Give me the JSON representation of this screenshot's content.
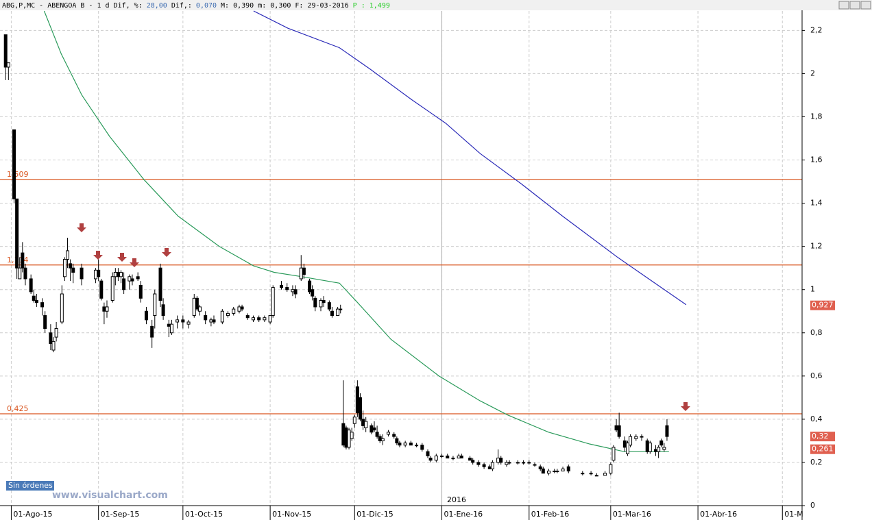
{
  "header": [
    {
      "text": "ABG,P,MC - ABENGOA B -  1 d Dif, %:",
      "color": "#000000"
    },
    {
      "text": "28,00",
      "color": "#3a6ab0"
    },
    {
      "text": "Dif,:",
      "color": "#000000"
    },
    {
      "text": "0,070",
      "color": "#3a6ab0"
    },
    {
      "text": "M: 0,390 m: 0,300 F: 29-03-2016",
      "color": "#000000"
    },
    {
      "text": "P : 1,499",
      "color": "#22cc22"
    }
  ],
  "orders_button": "Sin órdenes",
  "watermark": "www.visualchart.com",
  "year_label": "2016",
  "chart_data": {
    "type": "candlestick",
    "x": [
      -2,
      -1,
      1,
      2,
      3,
      4,
      5,
      7,
      8,
      9,
      11,
      12,
      14,
      15,
      16,
      18,
      19,
      20,
      21,
      22,
      25,
      30,
      31,
      32,
      33,
      34,
      36,
      37,
      38,
      39,
      40,
      42,
      43,
      45,
      46,
      48,
      50,
      51,
      53,
      54,
      56,
      57,
      59,
      61,
      63,
      65,
      66,
      67,
      69,
      71,
      72,
      75,
      77,
      79,
      81,
      82,
      84,
      86,
      88,
      90,
      92,
      93,
      96,
      98,
      100,
      101,
      103,
      104,
      106,
      107,
      108,
      110,
      111,
      113,
      114,
      116,
      117,
      118,
      119,
      120,
      121,
      122,
      123,
      124,
      125,
      126,
      128,
      129,
      130,
      131,
      132,
      134,
      136,
      137,
      138,
      140,
      142,
      144,
      146,
      148,
      149,
      151,
      153,
      155,
      157,
      159,
      160,
      163,
      164,
      166,
      168,
      170,
      171,
      173,
      174,
      176,
      177,
      180,
      182,
      184,
      186,
      188,
      189,
      191,
      193,
      194,
      196,
      198,
      203,
      206,
      208,
      211,
      213,
      214,
      215,
      216,
      218,
      219,
      220,
      222,
      224,
      226,
      227,
      229,
      230,
      231,
      232,
      233
    ],
    "open": [
      2.18,
      2.03,
      1.74,
      1.42,
      1.05,
      1.17,
      1.1,
      1.05,
      0.97,
      0.95,
      0.94,
      0.88,
      0.8,
      0.72,
      0.78,
      0.85,
      1.06,
      1.14,
      1.12,
      1.1,
      1.1,
      1.05,
      1.09,
      1.04,
      0.92,
      0.9,
      0.95,
      1.06,
      1.08,
      1.06,
      1.05,
      1.04,
      1.05,
      1.06,
      1.02,
      0.9,
      0.83,
      0.88,
      1.1,
      0.93,
      0.84,
      0.8,
      0.85,
      0.86,
      0.84,
      0.88,
      0.96,
      0.9,
      0.88,
      0.85,
      0.86,
      0.85,
      0.88,
      0.89,
      0.9,
      0.92,
      0.88,
      0.86,
      0.87,
      0.86,
      0.85,
      0.88,
      1.02,
      1.01,
      0.99,
      1.0,
      1.05,
      1.1,
      1.04,
      1.0,
      0.96,
      0.92,
      0.95,
      0.94,
      0.9,
      0.88,
      0.91,
      0.38,
      0.36,
      0.27,
      0.31,
      0.38,
      0.55,
      0.5,
      0.4,
      0.36,
      0.37,
      0.36,
      0.34,
      0.32,
      0.3,
      0.33,
      0.33,
      0.31,
      0.29,
      0.28,
      0.29,
      0.28,
      0.28,
      0.25,
      0.22,
      0.21,
      0.23,
      0.23,
      0.22,
      0.22,
      0.23,
      0.22,
      0.21,
      0.2,
      0.19,
      0.18,
      0.17,
      0.2,
      0.22,
      0.19,
      0.2,
      0.2,
      0.2,
      0.2,
      0.19,
      0.18,
      0.17,
      0.15,
      0.16,
      0.16,
      0.16,
      0.18,
      0.15,
      0.15,
      0.14,
      0.14,
      0.15,
      0.21,
      0.37,
      0.37,
      0.3,
      0.24,
      0.28,
      0.31,
      0.32,
      0.3,
      0.25,
      0.26,
      0.25,
      0.3,
      0.26,
      0.37
    ],
    "high": [
      2.18,
      2.05,
      1.74,
      1.42,
      1.15,
      1.22,
      1.12,
      1.07,
      1.0,
      0.98,
      0.96,
      0.9,
      0.84,
      0.78,
      0.85,
      1.02,
      1.15,
      1.24,
      1.14,
      1.12,
      1.12,
      1.1,
      1.14,
      1.05,
      0.94,
      0.95,
      1.08,
      1.1,
      1.1,
      1.09,
      1.08,
      1.07,
      1.07,
      1.08,
      1.04,
      0.92,
      0.86,
      1.0,
      1.12,
      0.96,
      0.86,
      0.86,
      0.88,
      0.88,
      0.86,
      0.98,
      0.97,
      0.93,
      0.9,
      0.87,
      0.88,
      0.91,
      0.9,
      0.92,
      0.93,
      0.93,
      0.89,
      0.88,
      0.88,
      0.88,
      0.88,
      1.02,
      1.04,
      1.03,
      1.02,
      1.02,
      1.16,
      1.12,
      1.05,
      1.02,
      0.97,
      0.96,
      0.97,
      0.95,
      0.92,
      0.92,
      0.93,
      0.58,
      0.37,
      0.36,
      0.36,
      0.42,
      0.58,
      0.52,
      0.44,
      0.41,
      0.38,
      0.39,
      0.37,
      0.33,
      0.33,
      0.35,
      0.34,
      0.32,
      0.3,
      0.3,
      0.3,
      0.29,
      0.29,
      0.26,
      0.23,
      0.24,
      0.24,
      0.24,
      0.23,
      0.24,
      0.24,
      0.23,
      0.22,
      0.21,
      0.2,
      0.19,
      0.21,
      0.26,
      0.23,
      0.21,
      0.21,
      0.21,
      0.21,
      0.21,
      0.2,
      0.19,
      0.18,
      0.17,
      0.17,
      0.17,
      0.18,
      0.19,
      0.16,
      0.16,
      0.15,
      0.16,
      0.2,
      0.28,
      0.4,
      0.43,
      0.32,
      0.3,
      0.33,
      0.33,
      0.33,
      0.31,
      0.3,
      0.28,
      0.28,
      0.31,
      0.29,
      0.4
    ],
    "low": [
      1.97,
      1.97,
      1.4,
      1.05,
      1.05,
      1.08,
      1.02,
      0.98,
      0.94,
      0.92,
      0.88,
      0.8,
      0.72,
      0.71,
      0.76,
      0.84,
      1.04,
      1.1,
      1.04,
      1.03,
      1.02,
      1.03,
      1.04,
      0.95,
      0.84,
      0.87,
      0.94,
      1.02,
      1.04,
      1.03,
      0.98,
      1.0,
      1.02,
      1.04,
      0.94,
      0.84,
      0.73,
      0.82,
      0.92,
      0.86,
      0.78,
      0.79,
      0.82,
      0.82,
      0.82,
      0.87,
      0.9,
      0.88,
      0.84,
      0.83,
      0.84,
      0.84,
      0.87,
      0.88,
      0.89,
      0.9,
      0.86,
      0.85,
      0.85,
      0.85,
      0.84,
      0.87,
      1.0,
      0.99,
      0.97,
      0.96,
      1.04,
      1.05,
      0.98,
      0.95,
      0.9,
      0.9,
      0.92,
      0.9,
      0.87,
      0.88,
      0.89,
      0.27,
      0.26,
      0.26,
      0.3,
      0.36,
      0.41,
      0.39,
      0.35,
      0.34,
      0.33,
      0.34,
      0.31,
      0.29,
      0.28,
      0.32,
      0.31,
      0.28,
      0.27,
      0.27,
      0.28,
      0.27,
      0.25,
      0.22,
      0.2,
      0.2,
      0.22,
      0.22,
      0.21,
      0.22,
      0.22,
      0.21,
      0.19,
      0.18,
      0.17,
      0.17,
      0.16,
      0.19,
      0.19,
      0.18,
      0.19,
      0.19,
      0.19,
      0.19,
      0.18,
      0.16,
      0.15,
      0.14,
      0.15,
      0.15,
      0.16,
      0.15,
      0.14,
      0.14,
      0.14,
      0.14,
      0.14,
      0.2,
      0.34,
      0.31,
      0.25,
      0.23,
      0.27,
      0.3,
      0.3,
      0.24,
      0.24,
      0.23,
      0.22,
      0.27,
      0.25,
      0.3
    ],
    "close": [
      2.03,
      2.05,
      1.42,
      1.1,
      1.1,
      1.1,
      1.05,
      0.99,
      0.95,
      0.94,
      0.92,
      0.82,
      0.75,
      0.76,
      0.82,
      0.98,
      1.14,
      1.18,
      1.1,
      1.08,
      1.05,
      1.09,
      1.06,
      0.96,
      0.9,
      0.92,
      1.06,
      1.08,
      1.06,
      1.08,
      1.0,
      1.06,
      1.04,
      1.05,
      0.96,
      0.86,
      0.78,
      0.98,
      0.95,
      0.88,
      0.83,
      0.84,
      0.86,
      0.85,
      0.85,
      0.96,
      0.91,
      0.92,
      0.86,
      0.86,
      0.85,
      0.9,
      0.89,
      0.91,
      0.92,
      0.91,
      0.87,
      0.87,
      0.86,
      0.87,
      0.88,
      1.01,
      1.01,
      1.0,
      1.0,
      0.98,
      1.1,
      1.07,
      0.99,
      0.97,
      0.92,
      0.95,
      0.94,
      0.91,
      0.88,
      0.91,
      0.91,
      0.28,
      0.27,
      0.35,
      0.34,
      0.41,
      0.43,
      0.4,
      0.37,
      0.39,
      0.34,
      0.35,
      0.32,
      0.3,
      0.31,
      0.34,
      0.32,
      0.29,
      0.28,
      0.29,
      0.28,
      0.28,
      0.26,
      0.23,
      0.21,
      0.23,
      0.23,
      0.22,
      0.22,
      0.23,
      0.22,
      0.21,
      0.2,
      0.19,
      0.18,
      0.17,
      0.2,
      0.22,
      0.2,
      0.2,
      0.2,
      0.2,
      0.2,
      0.2,
      0.19,
      0.17,
      0.15,
      0.16,
      0.16,
      0.16,
      0.17,
      0.16,
      0.15,
      0.15,
      0.14,
      0.15,
      0.19,
      0.27,
      0.35,
      0.32,
      0.27,
      0.29,
      0.32,
      0.32,
      0.32,
      0.25,
      0.29,
      0.25,
      0.27,
      0.28,
      0.27,
      0.32
    ],
    "up_color": "#ffffff",
    "down_color": "#000000",
    "moving_averages": [
      {
        "color": "#2a9a5a",
        "x": [
          11.7,
          17.8,
          25.1,
          34.9,
          47.1,
          59.3,
          73.9,
          86.1,
          93.4,
          103.2,
          116.6,
          122.7,
          134.9,
          152,
          166.6,
          176.3,
          190.9,
          205.6,
          217.8,
          229.9,
          233.7
        ],
        "values": [
          2.29,
          2.09,
          1.9,
          1.71,
          1.51,
          1.34,
          1.2,
          1.11,
          1.08,
          1.06,
          1.03,
          0.945,
          0.77,
          0.6,
          0.485,
          0.42,
          0.34,
          0.285,
          0.25,
          0.25,
          0.25
        ]
      },
      {
        "color": "#2a2ab8",
        "x": [
          86.1,
          98.3,
          116.6,
          127.6,
          142.2,
          154.4,
          166.6,
          181.2,
          195.9,
          215.4,
          227.6,
          239.8
        ],
        "values": [
          2.29,
          2.21,
          2.12,
          2.02,
          1.88,
          1.77,
          1.63,
          1.49,
          1.34,
          1.15,
          1.04,
          0.93
        ]
      }
    ],
    "levels": [
      {
        "value": 1.509,
        "label": "1,509"
      },
      {
        "value": 1.114,
        "label": "1,114"
      },
      {
        "value": 0.425,
        "label": "0,425"
      }
    ],
    "level_color": "#d9541e",
    "price_labels": [
      {
        "value": 0.927,
        "label": "0,927"
      },
      {
        "value": 0.32,
        "label": "0,32"
      },
      {
        "value": 0.261,
        "label": "0,261"
      }
    ],
    "price_label_color": "#e06050",
    "xlim": [
      -4,
      281
    ],
    "ylim": [
      0,
      2.29
    ],
    "xticks": [
      {
        "value": 0,
        "label": "01-Ago-15"
      },
      {
        "value": 31,
        "label": "01-Sep-15"
      },
      {
        "value": 61,
        "label": "01-Oct-15"
      },
      {
        "value": 92,
        "label": "01-Nov-15"
      },
      {
        "value": 122,
        "label": "01-Dic-15"
      },
      {
        "value": 153,
        "label": "01-Ene-16"
      },
      {
        "value": 184,
        "label": "01-Feb-16"
      },
      {
        "value": 213,
        "label": "01-Mar-16"
      },
      {
        "value": 244,
        "label": "01-Abr-16"
      },
      {
        "value": 274,
        "label": "01-M"
      }
    ],
    "yticks": [
      0,
      {
        "value": 0.2,
        "label": "0,2"
      },
      {
        "value": 0.4,
        "label": "0,4"
      },
      {
        "value": 0.6,
        "label": "0,6"
      },
      {
        "value": 0.8,
        "label": "0,8"
      },
      1,
      {
        "value": 1.2,
        "label": "1,2"
      },
      {
        "value": 1.4,
        "label": "1,4"
      },
      {
        "value": 1.6,
        "label": "1,6"
      },
      {
        "value": 1.8,
        "label": "1,8"
      },
      2,
      {
        "value": 2.2,
        "label": "2,2"
      }
    ],
    "grid": true
  }
}
